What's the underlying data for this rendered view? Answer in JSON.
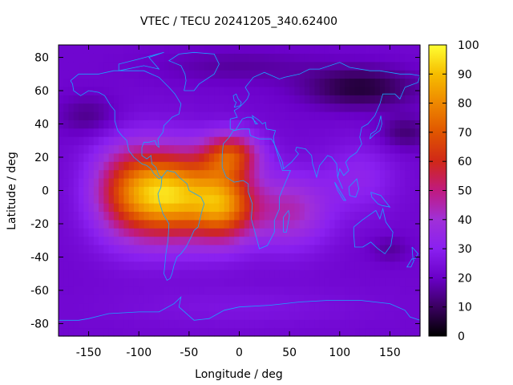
{
  "chart_data": {
    "type": "heatmap",
    "title": "VTEC / TECU 20241205_340.62400",
    "xlabel": "Longitude / deg",
    "ylabel": "Latitude / deg",
    "xlim": [
      -180,
      180
    ],
    "ylim": [
      -87.5,
      87.5
    ],
    "grid": false,
    "x_ticks": [
      -150,
      -100,
      -50,
      0,
      50,
      100,
      150
    ],
    "y_ticks": [
      -80,
      -60,
      -40,
      -20,
      0,
      20,
      40,
      60,
      80
    ],
    "colorbar": {
      "label": "VTEC / TECU",
      "range": [
        0,
        100
      ],
      "ticks": [
        0,
        10,
        20,
        30,
        40,
        50,
        60,
        70,
        80,
        90,
        100
      ],
      "colormap": [
        "#000000",
        "#3a0060",
        "#6a00c8",
        "#8a20f0",
        "#a030d8",
        "#c01a80",
        "#d02818",
        "#e05500",
        "#ee8800",
        "#f6bd00",
        "#ffff33"
      ]
    },
    "peaks": [
      {
        "lon": -70,
        "lat": 0,
        "value": 88
      },
      {
        "lon": -15,
        "lat": -8,
        "value": 80
      },
      {
        "lon": -10,
        "lat": 20,
        "value": 72
      },
      {
        "lon": -110,
        "lat": 0,
        "value": 66
      },
      {
        "lon": 50,
        "lat": -15,
        "value": 48
      },
      {
        "lon": 120,
        "lat": 10,
        "value": 34
      }
    ],
    "lows": [
      {
        "lon": 120,
        "lat": 60,
        "value": 4
      },
      {
        "lon": 160,
        "lat": 40,
        "value": 12
      },
      {
        "lon": -150,
        "lat": 45,
        "value": 12
      },
      {
        "lon": 150,
        "lat": -35,
        "value": 18
      }
    ]
  }
}
